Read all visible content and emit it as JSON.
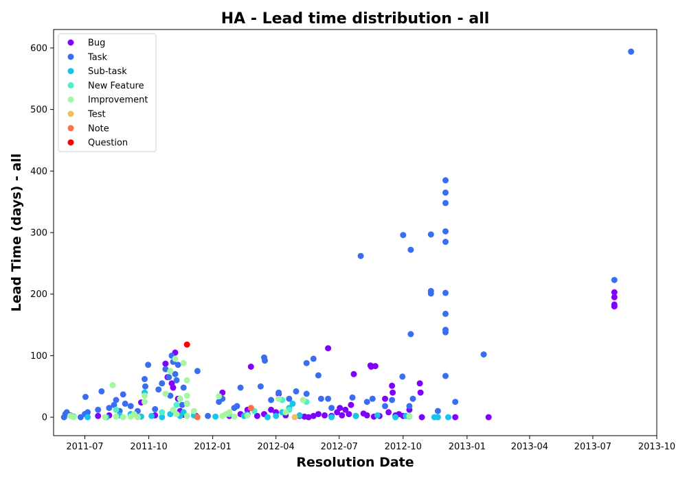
{
  "chart_data": {
    "type": "scatter",
    "title": "HA - Lead time distribution - all",
    "xlabel": "Resolution Date",
    "ylabel": "Lead Time (days) - all",
    "x_axis_type": "date",
    "xlim": [
      "2011-05-17",
      "2013-10-01"
    ],
    "ylim": [
      -30,
      630
    ],
    "x_ticks": [
      "2011-07",
      "2011-10",
      "2012-01",
      "2012-04",
      "2012-07",
      "2012-10",
      "2013-01",
      "2013-04",
      "2013-07",
      "2013-10"
    ],
    "y_ticks": [
      0,
      100,
      200,
      300,
      400,
      500,
      600
    ],
    "grid": false,
    "legend_position": "upper-left",
    "series": [
      {
        "name": "Bug",
        "color": "#8000ff",
        "points": [
          [
            "2011-07-20",
            2
          ],
          [
            "2011-08-05",
            3
          ],
          [
            "2011-09-05",
            5
          ],
          [
            "2011-09-20",
            24
          ],
          [
            "2011-10-10",
            3
          ],
          [
            "2011-10-25",
            87
          ],
          [
            "2011-10-28",
            65
          ],
          [
            "2011-11-03",
            55
          ],
          [
            "2011-11-05",
            48
          ],
          [
            "2011-11-08",
            105
          ],
          [
            "2011-11-12",
            30
          ],
          [
            "2011-11-15",
            10
          ],
          [
            "2011-11-20",
            4
          ],
          [
            "2011-12-08",
            2
          ],
          [
            "2012-01-15",
            40
          ],
          [
            "2012-01-25",
            2
          ],
          [
            "2012-02-10",
            5
          ],
          [
            "2012-02-20",
            12
          ],
          [
            "2012-02-25",
            82
          ],
          [
            "2012-03-05",
            2
          ],
          [
            "2012-03-15",
            5
          ],
          [
            "2012-03-25",
            12
          ],
          [
            "2012-04-01",
            8
          ],
          [
            "2012-04-05",
            38
          ],
          [
            "2012-04-15",
            3
          ],
          [
            "2012-05-05",
            2
          ],
          [
            "2012-05-12",
            1
          ],
          [
            "2012-05-18",
            0
          ],
          [
            "2012-05-25",
            2
          ],
          [
            "2012-06-01",
            5
          ],
          [
            "2012-06-10",
            3
          ],
          [
            "2012-06-15",
            112
          ],
          [
            "2012-06-20",
            2
          ],
          [
            "2012-06-28",
            8
          ],
          [
            "2012-07-02",
            15
          ],
          [
            "2012-07-05",
            3
          ],
          [
            "2012-07-10",
            12
          ],
          [
            "2012-07-15",
            5
          ],
          [
            "2012-07-18",
            20
          ],
          [
            "2012-07-22",
            70
          ],
          [
            "2012-07-25",
            2
          ],
          [
            "2012-08-05",
            6
          ],
          [
            "2012-08-10",
            3
          ],
          [
            "2012-08-15",
            84
          ],
          [
            "2012-08-16",
            82
          ],
          [
            "2012-08-20",
            1
          ],
          [
            "2012-08-22",
            83
          ],
          [
            "2012-08-28",
            2
          ],
          [
            "2012-09-05",
            30
          ],
          [
            "2012-09-10",
            8
          ],
          [
            "2012-09-15",
            51
          ],
          [
            "2012-09-16",
            40
          ],
          [
            "2012-09-20",
            3
          ],
          [
            "2012-09-25",
            5
          ],
          [
            "2012-10-01",
            2
          ],
          [
            "2012-10-10",
            12
          ],
          [
            "2012-10-25",
            55
          ],
          [
            "2012-10-26",
            40
          ],
          [
            "2012-10-28",
            0
          ],
          [
            "2012-12-15",
            0
          ],
          [
            "2013-02-01",
            0
          ],
          [
            "2013-08-01",
            203
          ],
          [
            "2013-08-01",
            195
          ],
          [
            "2013-08-01",
            183
          ],
          [
            "2013-08-01",
            180
          ]
        ]
      },
      {
        "name": "Task",
        "color": "#3a6ef0",
        "points": [
          [
            "2011-06-01",
            0
          ],
          [
            "2011-06-03",
            5
          ],
          [
            "2011-06-05",
            8
          ],
          [
            "2011-06-10",
            3
          ],
          [
            "2011-06-25",
            0
          ],
          [
            "2011-07-01",
            5
          ],
          [
            "2011-07-02",
            33
          ],
          [
            "2011-07-05",
            8
          ],
          [
            "2011-07-20",
            12
          ],
          [
            "2011-07-25",
            42
          ],
          [
            "2011-08-05",
            15
          ],
          [
            "2011-08-12",
            20
          ],
          [
            "2011-08-15",
            28
          ],
          [
            "2011-08-20",
            10
          ],
          [
            "2011-08-25",
            37
          ],
          [
            "2011-08-28",
            22
          ],
          [
            "2011-09-05",
            18
          ],
          [
            "2011-09-15",
            10
          ],
          [
            "2011-09-25",
            62
          ],
          [
            "2011-09-26",
            50
          ],
          [
            "2011-09-30",
            85
          ],
          [
            "2011-10-10",
            13
          ],
          [
            "2011-10-15",
            45
          ],
          [
            "2011-10-20",
            55
          ],
          [
            "2011-10-25",
            78
          ],
          [
            "2011-10-30",
            65
          ],
          [
            "2011-11-01",
            35
          ],
          [
            "2011-11-03",
            100
          ],
          [
            "2011-11-05",
            90
          ],
          [
            "2011-11-08",
            70
          ],
          [
            "2011-11-10",
            60
          ],
          [
            "2011-11-12",
            85
          ],
          [
            "2011-11-15",
            30
          ],
          [
            "2011-11-18",
            20
          ],
          [
            "2011-11-20",
            48
          ],
          [
            "2011-11-25",
            22
          ],
          [
            "2011-12-10",
            75
          ],
          [
            "2011-12-25",
            2
          ],
          [
            "2012-01-10",
            25
          ],
          [
            "2012-01-15",
            30
          ],
          [
            "2012-02-01",
            15
          ],
          [
            "2012-02-05",
            18
          ],
          [
            "2012-02-10",
            48
          ],
          [
            "2012-02-20",
            5
          ],
          [
            "2012-03-10",
            50
          ],
          [
            "2012-03-15",
            97
          ],
          [
            "2012-03-16",
            92
          ],
          [
            "2012-03-25",
            28
          ],
          [
            "2012-04-05",
            40
          ],
          [
            "2012-04-20",
            30
          ],
          [
            "2012-04-30",
            42
          ],
          [
            "2012-05-15",
            38
          ],
          [
            "2012-05-15",
            88
          ],
          [
            "2012-05-25",
            95
          ],
          [
            "2012-06-01",
            68
          ],
          [
            "2012-06-05",
            30
          ],
          [
            "2012-06-15",
            30
          ],
          [
            "2012-06-20",
            15
          ],
          [
            "2012-07-20",
            32
          ],
          [
            "2012-08-01",
            262
          ],
          [
            "2012-08-10",
            25
          ],
          [
            "2012-08-18",
            30
          ],
          [
            "2012-09-05",
            18
          ],
          [
            "2012-09-15",
            28
          ],
          [
            "2012-09-30",
            66
          ],
          [
            "2012-10-01",
            296
          ],
          [
            "2012-10-10",
            18
          ],
          [
            "2012-10-12",
            272
          ],
          [
            "2012-10-12",
            135
          ],
          [
            "2012-10-15",
            30
          ],
          [
            "2012-11-10",
            297
          ],
          [
            "2012-11-10",
            205
          ],
          [
            "2012-11-10",
            201
          ],
          [
            "2012-11-20",
            10
          ],
          [
            "2012-12-01",
            385
          ],
          [
            "2012-12-01",
            365
          ],
          [
            "2012-12-01",
            348
          ],
          [
            "2012-12-01",
            302
          ],
          [
            "2012-12-01",
            285
          ],
          [
            "2012-12-01",
            202
          ],
          [
            "2012-12-01",
            168
          ],
          [
            "2012-12-01",
            142
          ],
          [
            "2012-12-01",
            138
          ],
          [
            "2012-12-01",
            67
          ],
          [
            "2012-12-15",
            25
          ],
          [
            "2013-01-25",
            102
          ],
          [
            "2013-08-01",
            223
          ],
          [
            "2013-08-25",
            594
          ]
        ]
      },
      {
        "name": "Sub-task",
        "color": "#18c4e8",
        "points": [
          [
            "2011-06-15",
            1
          ],
          [
            "2011-07-05",
            0
          ],
          [
            "2011-08-01",
            0
          ],
          [
            "2011-08-20",
            3
          ],
          [
            "2011-09-05",
            5
          ],
          [
            "2011-09-20",
            1
          ],
          [
            "2011-09-25",
            40
          ],
          [
            "2011-10-05",
            2
          ],
          [
            "2011-10-20",
            0
          ],
          [
            "2011-11-01",
            5
          ],
          [
            "2011-11-15",
            2
          ],
          [
            "2011-11-20",
            8
          ],
          [
            "2011-12-05",
            3
          ],
          [
            "2012-01-05",
            1
          ],
          [
            "2012-02-15",
            2
          ],
          [
            "2012-03-20",
            0
          ],
          [
            "2012-04-01",
            2
          ],
          [
            "2012-04-10",
            8
          ],
          [
            "2012-04-20",
            15
          ],
          [
            "2012-04-25",
            22
          ],
          [
            "2012-05-05",
            3
          ],
          [
            "2012-06-20",
            0
          ],
          [
            "2012-07-25",
            2
          ],
          [
            "2012-08-25",
            3
          ],
          [
            "2012-09-20",
            0
          ],
          [
            "2012-10-05",
            2
          ],
          [
            "2012-11-15",
            0
          ],
          [
            "2012-11-20",
            0
          ],
          [
            "2012-12-05",
            0
          ]
        ]
      },
      {
        "name": "New Feature",
        "color": "#4ef0c8",
        "points": [
          [
            "2011-08-15",
            12
          ],
          [
            "2011-10-20",
            8
          ],
          [
            "2011-11-10",
            20
          ],
          [
            "2012-01-25",
            5
          ],
          [
            "2012-03-01",
            10
          ],
          [
            "2012-04-10",
            28
          ],
          [
            "2012-04-20",
            12
          ],
          [
            "2012-05-15",
            25
          ],
          [
            "2012-10-10",
            1
          ]
        ]
      },
      {
        "name": "Improvement",
        "color": "#a6f5a0",
        "points": [
          [
            "2011-06-10",
            2
          ],
          [
            "2011-06-15",
            0
          ],
          [
            "2011-07-30",
            0
          ],
          [
            "2011-08-10",
            52
          ],
          [
            "2011-08-15",
            1
          ],
          [
            "2011-08-25",
            0
          ],
          [
            "2011-09-05",
            1
          ],
          [
            "2011-09-10",
            5
          ],
          [
            "2011-09-15",
            0
          ],
          [
            "2011-09-25",
            35
          ],
          [
            "2011-09-25",
            25
          ],
          [
            "2011-10-25",
            38
          ],
          [
            "2011-11-01",
            75
          ],
          [
            "2011-11-05",
            12
          ],
          [
            "2011-11-08",
            95
          ],
          [
            "2011-11-10",
            5
          ],
          [
            "2011-11-15",
            30
          ],
          [
            "2011-11-20",
            88
          ],
          [
            "2011-11-25",
            60
          ],
          [
            "2011-11-25",
            35
          ],
          [
            "2011-11-25",
            22
          ],
          [
            "2011-11-25",
            2
          ],
          [
            "2011-12-05",
            10
          ],
          [
            "2012-01-10",
            34
          ],
          [
            "2012-01-15",
            2
          ],
          [
            "2012-01-20",
            5
          ],
          [
            "2012-01-25",
            8
          ],
          [
            "2012-02-01",
            1
          ],
          [
            "2012-02-20",
            3
          ],
          [
            "2012-04-05",
            30
          ],
          [
            "2012-04-15",
            8
          ],
          [
            "2012-05-10",
            28
          ],
          [
            "2012-10-10",
            2
          ]
        ]
      },
      {
        "name": "Test",
        "color": "#f0c060",
        "points": [
          [
            "2012-04-28",
            0
          ]
        ]
      },
      {
        "name": "Note",
        "color": "#ff7048",
        "points": [
          [
            "2011-12-10",
            0
          ],
          [
            "2012-02-25",
            15
          ]
        ]
      },
      {
        "name": "Question",
        "color": "#ff0000",
        "points": [
          [
            "2011-11-25",
            118
          ]
        ]
      }
    ]
  }
}
